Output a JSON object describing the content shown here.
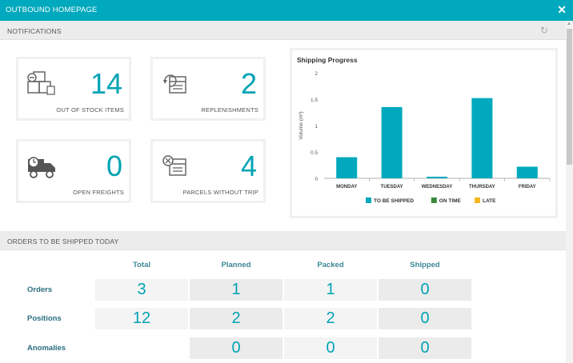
{
  "window": {
    "title": "OUTBOUND HOMEPAGE",
    "close_label": "✕"
  },
  "notifications": {
    "title": "NOTIFICATIONS",
    "refresh_icon": "↻",
    "cards": [
      {
        "value": "14",
        "caption": "OUT OF STOCK ITEMS",
        "icon": "boxes-icon"
      },
      {
        "value": "2",
        "caption": "REPLENISHMENTS",
        "icon": "replenish-box-icon"
      },
      {
        "value": "0",
        "caption": "OPEN FREIGHTS",
        "icon": "truck-clock-icon"
      },
      {
        "value": "4",
        "caption": "PARCELS WITHOUT TRIP",
        "icon": "parcel-cancel-icon"
      }
    ]
  },
  "chart_data": {
    "type": "bar",
    "title": "Shipping Progress",
    "ylabel": "Volume (m³)",
    "categories": [
      "MONDAY",
      "TUESDAY",
      "WEDNESDAY",
      "THURSDAY",
      "FRIDAY"
    ],
    "series": [
      {
        "name": "TO BE SHIPPED",
        "color": "#00a9bd",
        "values": [
          0.4,
          1.35,
          0.03,
          1.52,
          0.22
        ]
      },
      {
        "name": "ON TIME",
        "color": "#3a8a3e",
        "values": [
          0,
          0,
          0,
          0,
          0
        ]
      },
      {
        "name": "LATE",
        "color": "#f3b81f",
        "values": [
          0,
          0,
          0,
          0,
          0
        ]
      }
    ],
    "ylim": [
      0,
      2
    ],
    "yticks": [
      "0",
      "0.5",
      "1",
      "1.5",
      "2"
    ],
    "legend_position": "bottom"
  },
  "orders": {
    "title": "ORDERS TO BE SHIPPED TODAY",
    "columns": [
      "Total",
      "Planned",
      "Packed",
      "Shipped"
    ],
    "rows": [
      {
        "label": "Orders",
        "values": [
          "3",
          "1",
          "1",
          "0"
        ]
      },
      {
        "label": "Positions",
        "values": [
          "12",
          "2",
          "2",
          "0"
        ]
      },
      {
        "label": "Anomalies",
        "values": [
          "",
          "0",
          "0",
          "0"
        ]
      }
    ]
  }
}
